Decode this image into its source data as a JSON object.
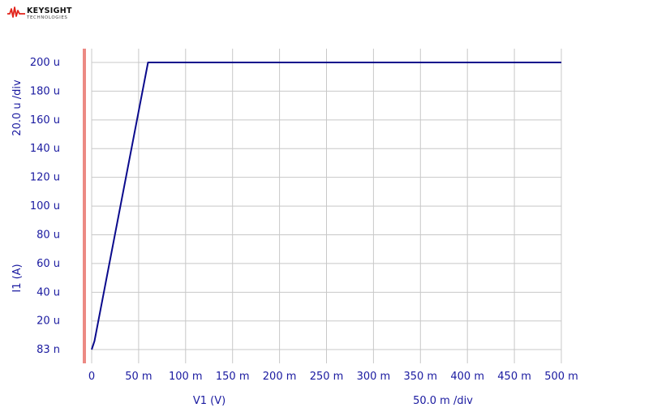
{
  "brand": {
    "name": "KEYSIGHT",
    "sub": "TECHNOLOGIES",
    "color": "#e2231a"
  },
  "chart_data": {
    "type": "line",
    "x": [
      0,
      0.003,
      0.06,
      0.5
    ],
    "series": [
      {
        "values": [
          8.3e-08,
          6e-06,
          0.0002,
          0.0002
        ],
        "color": "#0a0a8c"
      }
    ],
    "xlabel": "V1 (V)",
    "ylabel": "I1 (A)",
    "xdiv_label": "50.0 m /div",
    "ydiv_label": "20.0 u /div",
    "xlim": [
      0,
      0.5
    ],
    "ylim": [
      8.3e-08,
      0.0002
    ],
    "xticks": [
      {
        "v": 0,
        "label": "0"
      },
      {
        "v": 0.05,
        "label": "50 m"
      },
      {
        "v": 0.1,
        "label": "100 m"
      },
      {
        "v": 0.15,
        "label": "150 m"
      },
      {
        "v": 0.2,
        "label": "200 m"
      },
      {
        "v": 0.25,
        "label": "250 m"
      },
      {
        "v": 0.3,
        "label": "300 m"
      },
      {
        "v": 0.35,
        "label": "350 m"
      },
      {
        "v": 0.4,
        "label": "400 m"
      },
      {
        "v": 0.45,
        "label": "450 m"
      },
      {
        "v": 0.5,
        "label": "500 m"
      }
    ],
    "yticks": [
      {
        "v": 8.3e-08,
        "label": "83 n"
      },
      {
        "v": 2e-05,
        "label": "20 u"
      },
      {
        "v": 4e-05,
        "label": "40 u"
      },
      {
        "v": 6e-05,
        "label": "60 u"
      },
      {
        "v": 8e-05,
        "label": "80 u"
      },
      {
        "v": 0.0001,
        "label": "100 u"
      },
      {
        "v": 0.00012,
        "label": "120 u"
      },
      {
        "v": 0.00014,
        "label": "140 u"
      },
      {
        "v": 0.00016,
        "label": "160 u"
      },
      {
        "v": 0.00018,
        "label": "180 u"
      },
      {
        "v": 0.0002,
        "label": "200 u"
      }
    ],
    "grid": true,
    "axis_bar_color": "#ec8a84",
    "label_color": "#1a1aa0"
  }
}
